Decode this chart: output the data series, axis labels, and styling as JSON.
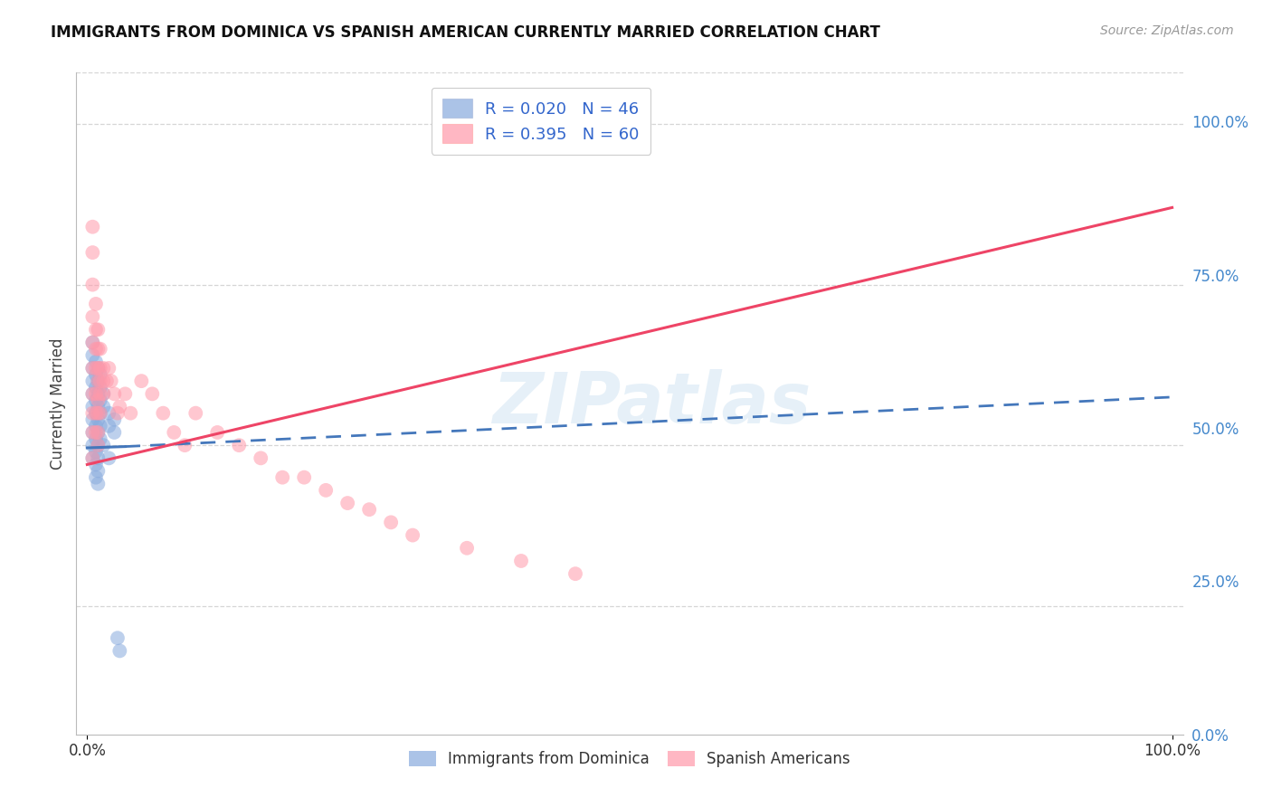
{
  "title": "IMMIGRANTS FROM DOMINICA VS SPANISH AMERICAN CURRENTLY MARRIED CORRELATION CHART",
  "source_text": "Source: ZipAtlas.com",
  "ylabel": "Currently Married",
  "right_ytick_labels": [
    "100.0%",
    "75.0%",
    "50.0%",
    "25.0%",
    "0.0%"
  ],
  "right_ytick_values": [
    1.0,
    0.75,
    0.5,
    0.25,
    0.0
  ],
  "xtick_labels": [
    "0.0%",
    "100.0%"
  ],
  "xtick_values": [
    0.0,
    1.0
  ],
  "xlim": [
    -0.01,
    1.01
  ],
  "ylim": [
    0.05,
    1.08
  ],
  "blue_color": "#88AADD",
  "pink_color": "#FF99AA",
  "blue_line_color": "#4477BB",
  "pink_line_color": "#EE4466",
  "legend_blue_label": "R = 0.020   N = 46",
  "legend_pink_label": "R = 0.395   N = 60",
  "legend_text_color": "#3366CC",
  "watermark": "ZIPatlas",
  "blue_scatter_x": [
    0.005,
    0.005,
    0.005,
    0.005,
    0.005,
    0.005,
    0.005,
    0.005,
    0.005,
    0.005,
    0.008,
    0.008,
    0.008,
    0.008,
    0.008,
    0.008,
    0.008,
    0.008,
    0.008,
    0.008,
    0.01,
    0.01,
    0.01,
    0.01,
    0.01,
    0.01,
    0.01,
    0.01,
    0.01,
    0.01,
    0.012,
    0.012,
    0.012,
    0.012,
    0.012,
    0.012,
    0.015,
    0.015,
    0.015,
    0.02,
    0.02,
    0.02,
    0.025,
    0.025,
    0.028,
    0.03
  ],
  "blue_scatter_y": [
    0.66,
    0.64,
    0.62,
    0.6,
    0.58,
    0.56,
    0.54,
    0.52,
    0.5,
    0.48,
    0.63,
    0.61,
    0.59,
    0.57,
    0.55,
    0.53,
    0.51,
    0.49,
    0.47,
    0.45,
    0.62,
    0.6,
    0.58,
    0.56,
    0.54,
    0.52,
    0.5,
    0.48,
    0.46,
    0.44,
    0.61,
    0.59,
    0.57,
    0.55,
    0.53,
    0.51,
    0.58,
    0.56,
    0.5,
    0.55,
    0.53,
    0.48,
    0.54,
    0.52,
    0.2,
    0.18
  ],
  "pink_scatter_x": [
    0.005,
    0.005,
    0.005,
    0.005,
    0.005,
    0.005,
    0.005,
    0.005,
    0.005,
    0.005,
    0.008,
    0.008,
    0.008,
    0.008,
    0.008,
    0.008,
    0.008,
    0.01,
    0.01,
    0.01,
    0.01,
    0.01,
    0.01,
    0.01,
    0.01,
    0.012,
    0.012,
    0.012,
    0.012,
    0.012,
    0.015,
    0.015,
    0.015,
    0.018,
    0.02,
    0.022,
    0.025,
    0.028,
    0.03,
    0.035,
    0.04,
    0.05,
    0.06,
    0.07,
    0.08,
    0.09,
    0.1,
    0.12,
    0.14,
    0.16,
    0.18,
    0.2,
    0.22,
    0.24,
    0.26,
    0.28,
    0.3,
    0.35,
    0.4,
    0.45
  ],
  "pink_scatter_y": [
    0.84,
    0.8,
    0.75,
    0.7,
    0.66,
    0.62,
    0.58,
    0.55,
    0.52,
    0.48,
    0.72,
    0.68,
    0.65,
    0.62,
    0.58,
    0.55,
    0.52,
    0.68,
    0.65,
    0.62,
    0.6,
    0.57,
    0.55,
    0.52,
    0.5,
    0.65,
    0.62,
    0.6,
    0.58,
    0.55,
    0.62,
    0.6,
    0.58,
    0.6,
    0.62,
    0.6,
    0.58,
    0.55,
    0.56,
    0.58,
    0.55,
    0.6,
    0.58,
    0.55,
    0.52,
    0.5,
    0.55,
    0.52,
    0.5,
    0.48,
    0.45,
    0.45,
    0.43,
    0.41,
    0.4,
    0.38,
    0.36,
    0.34,
    0.32,
    0.3
  ],
  "blue_trend_start_x": 0.0,
  "blue_trend_start_y": 0.496,
  "blue_trend_end_x": 0.035,
  "blue_trend_solid_end_y": 0.498,
  "blue_trend_dashed_end_x": 1.0,
  "blue_trend_dashed_end_y": 0.575,
  "pink_trend_start_x": 0.0,
  "pink_trend_start_y": 0.47,
  "pink_trend_end_x": 1.0,
  "pink_trend_end_y": 0.87
}
